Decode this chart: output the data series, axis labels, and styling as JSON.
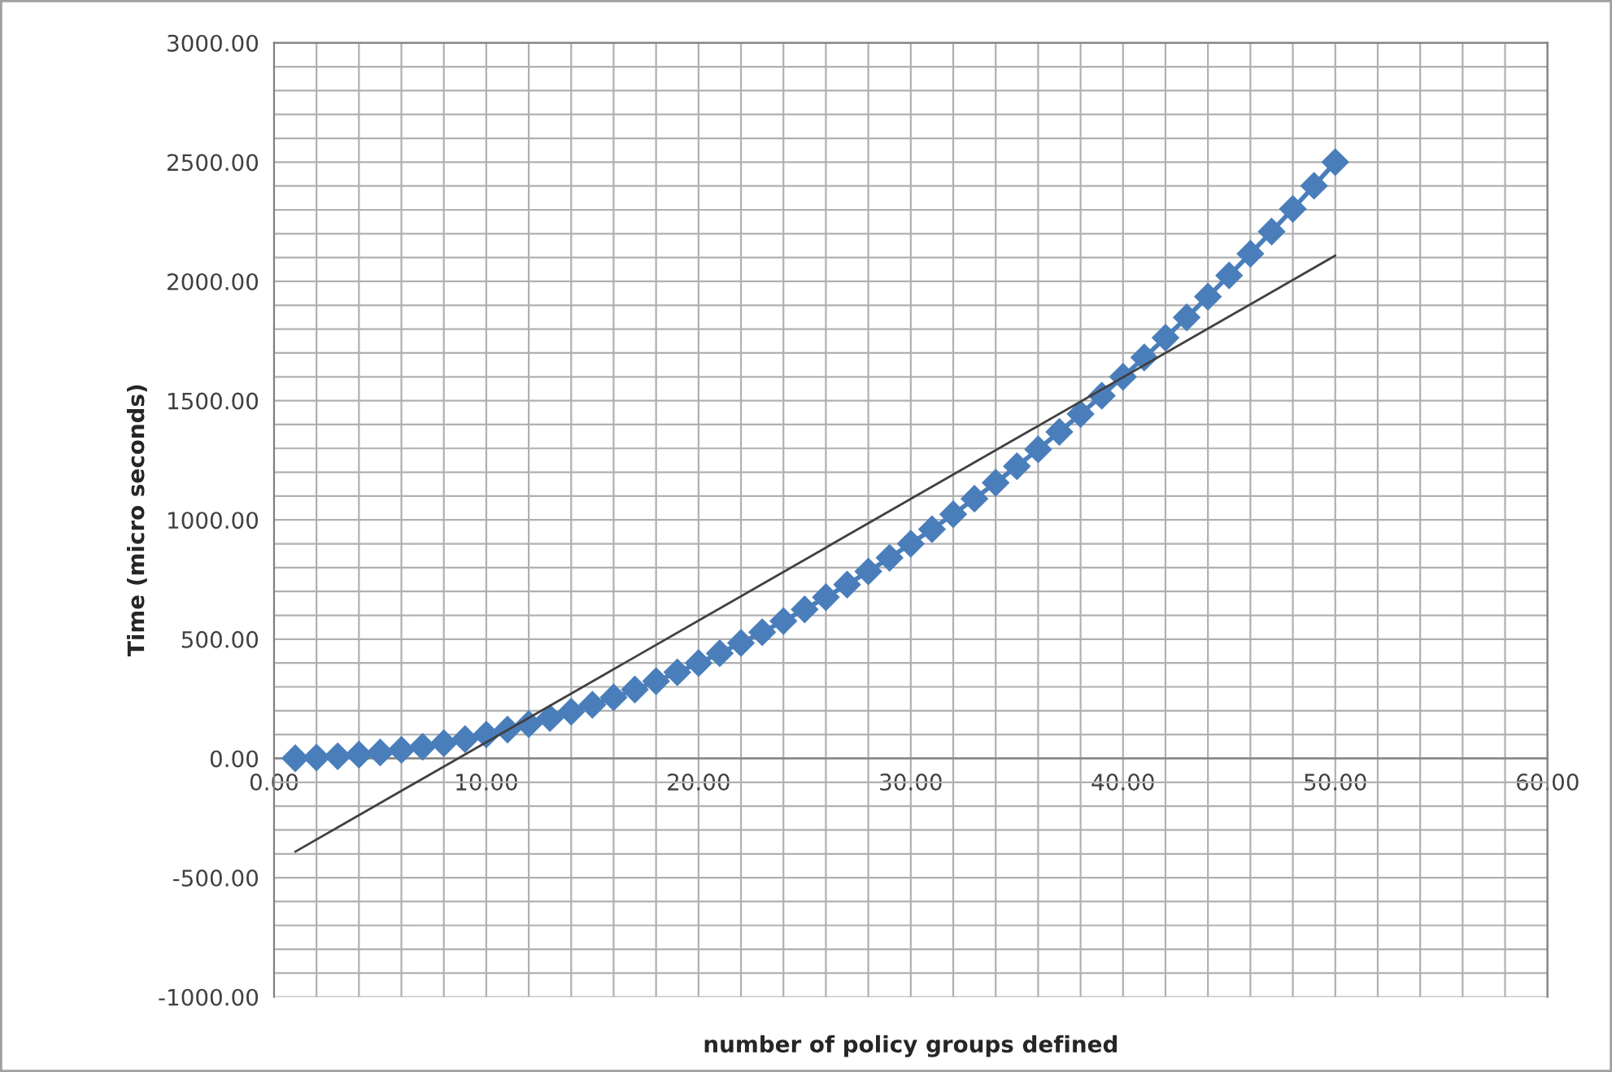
{
  "chart_data": {
    "type": "line",
    "xlabel": "number of policy groups defined",
    "ylabel": "Time (micro seconds)",
    "x": [
      1,
      2,
      3,
      4,
      5,
      6,
      7,
      8,
      9,
      10,
      11,
      12,
      13,
      14,
      15,
      16,
      17,
      18,
      19,
      20,
      21,
      22,
      23,
      24,
      25,
      26,
      27,
      28,
      29,
      30,
      31,
      32,
      33,
      34,
      35,
      36,
      37,
      38,
      39,
      40,
      41,
      42,
      43,
      44,
      45,
      46,
      47,
      48,
      49,
      50
    ],
    "series": [
      {
        "color": "#4a7ebb",
        "marker": "diamond",
        "values": [
          1,
          4,
          9,
          16,
          25,
          36,
          49,
          64,
          81,
          100,
          121,
          144,
          169,
          196,
          225,
          256,
          289,
          324,
          361,
          400,
          441,
          484,
          529,
          576,
          625,
          676,
          729,
          784,
          841,
          900,
          961,
          1024,
          1089,
          1156,
          1225,
          1296,
          1369,
          1444,
          1521,
          1600,
          1681,
          1764,
          1849,
          1936,
          2025,
          2116,
          2209,
          2304,
          2401,
          2500
        ]
      },
      {
        "type": "line",
        "color": "#404040",
        "marker": "none",
        "x": [
          1,
          50
        ],
        "values": [
          -391,
          2108
        ]
      }
    ],
    "xlim": [
      0,
      60
    ],
    "ylim": [
      -1000,
      3000
    ],
    "xticks": [
      {
        "value": 0,
        "label": "0.00"
      },
      {
        "value": 2,
        "label": null
      },
      {
        "value": 4,
        "label": null
      },
      {
        "value": 6,
        "label": null
      },
      {
        "value": 8,
        "label": null
      },
      {
        "value": 10,
        "label": "10.00"
      },
      {
        "value": 12,
        "label": null
      },
      {
        "value": 14,
        "label": null
      },
      {
        "value": 16,
        "label": null
      },
      {
        "value": 18,
        "label": null
      },
      {
        "value": 20,
        "label": "20.00"
      },
      {
        "value": 22,
        "label": null
      },
      {
        "value": 24,
        "label": null
      },
      {
        "value": 26,
        "label": null
      },
      {
        "value": 28,
        "label": null
      },
      {
        "value": 30,
        "label": "30.00"
      },
      {
        "value": 32,
        "label": null
      },
      {
        "value": 34,
        "label": null
      },
      {
        "value": 36,
        "label": null
      },
      {
        "value": 38,
        "label": null
      },
      {
        "value": 40,
        "label": "40.00"
      },
      {
        "value": 42,
        "label": null
      },
      {
        "value": 44,
        "label": null
      },
      {
        "value": 46,
        "label": null
      },
      {
        "value": 48,
        "label": null
      },
      {
        "value": 50,
        "label": "50.00"
      },
      {
        "value": 52,
        "label": null
      },
      {
        "value": 54,
        "label": null
      },
      {
        "value": 56,
        "label": null
      },
      {
        "value": 58,
        "label": null
      },
      {
        "value": 60,
        "label": "60.00"
      }
    ],
    "yticks": [
      {
        "value": -1000,
        "label": "-1000.00"
      },
      {
        "value": -900,
        "label": null
      },
      {
        "value": -800,
        "label": null
      },
      {
        "value": -700,
        "label": null
      },
      {
        "value": -600,
        "label": null
      },
      {
        "value": -500,
        "label": "-500.00"
      },
      {
        "value": -400,
        "label": null
      },
      {
        "value": -300,
        "label": null
      },
      {
        "value": -200,
        "label": null
      },
      {
        "value": -100,
        "label": null
      },
      {
        "value": 0,
        "label": "0.00"
      },
      {
        "value": 100,
        "label": null
      },
      {
        "value": 200,
        "label": null
      },
      {
        "value": 300,
        "label": null
      },
      {
        "value": 400,
        "label": null
      },
      {
        "value": 500,
        "label": "500.00"
      },
      {
        "value": 600,
        "label": null
      },
      {
        "value": 700,
        "label": null
      },
      {
        "value": 800,
        "label": null
      },
      {
        "value": 900,
        "label": null
      },
      {
        "value": 1000,
        "label": "1000.00"
      },
      {
        "value": 1100,
        "label": null
      },
      {
        "value": 1200,
        "label": null
      },
      {
        "value": 1300,
        "label": null
      },
      {
        "value": 1400,
        "label": null
      },
      {
        "value": 1500,
        "label": "1500.00"
      },
      {
        "value": 1600,
        "label": null
      },
      {
        "value": 1700,
        "label": null
      },
      {
        "value": 1800,
        "label": null
      },
      {
        "value": 1900,
        "label": null
      },
      {
        "value": 2000,
        "label": "2000.00"
      },
      {
        "value": 2100,
        "label": null
      },
      {
        "value": 2200,
        "label": null
      },
      {
        "value": 2300,
        "label": null
      },
      {
        "value": 2400,
        "label": null
      },
      {
        "value": 2500,
        "label": "2500.00"
      },
      {
        "value": 2600,
        "label": null
      },
      {
        "value": 2700,
        "label": null
      },
      {
        "value": 2800,
        "label": null
      },
      {
        "value": 2900,
        "label": null
      },
      {
        "value": 3000,
        "label": "3000.00"
      }
    ],
    "grid": true
  }
}
